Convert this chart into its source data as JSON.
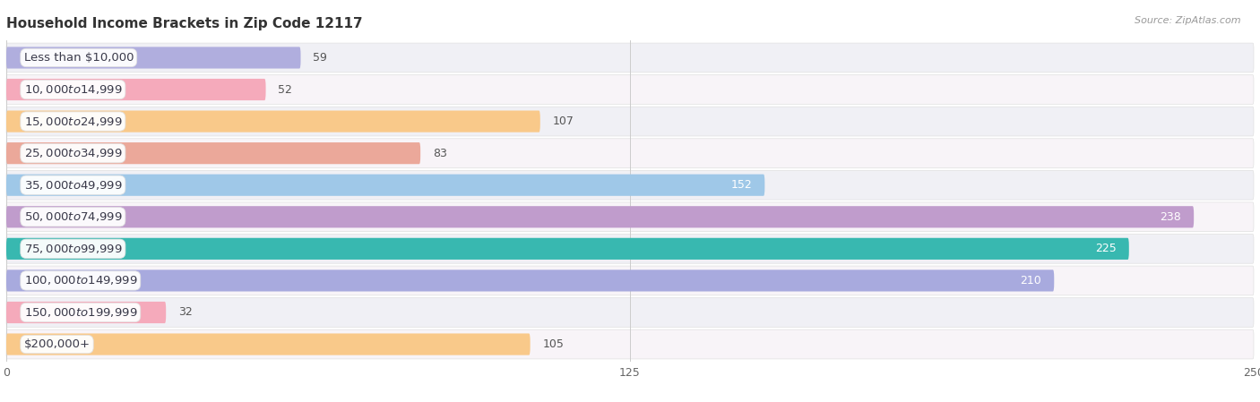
{
  "title": "Household Income Brackets in Zip Code 12117",
  "source": "Source: ZipAtlas.com",
  "categories": [
    "Less than $10,000",
    "$10,000 to $14,999",
    "$15,000 to $24,999",
    "$25,000 to $34,999",
    "$35,000 to $49,999",
    "$50,000 to $74,999",
    "$75,000 to $99,999",
    "$100,000 to $149,999",
    "$150,000 to $199,999",
    "$200,000+"
  ],
  "values": [
    59,
    52,
    107,
    83,
    152,
    238,
    225,
    210,
    32,
    105
  ],
  "bar_colors": [
    "#b0aede",
    "#f5aabb",
    "#f9c98a",
    "#eba89a",
    "#9fc8e8",
    "#c09ccc",
    "#38b8b0",
    "#a8aade",
    "#f5aabb",
    "#f9c98a"
  ],
  "row_bg_colors": [
    "#f0f0f4",
    "#f8f0f8"
  ],
  "xlim": [
    0,
    250
  ],
  "xticks": [
    0,
    125,
    250
  ],
  "background_color": "#ffffff",
  "title_fontsize": 11,
  "label_fontsize": 9.5,
  "value_fontsize": 9,
  "value_inside_threshold": 130
}
